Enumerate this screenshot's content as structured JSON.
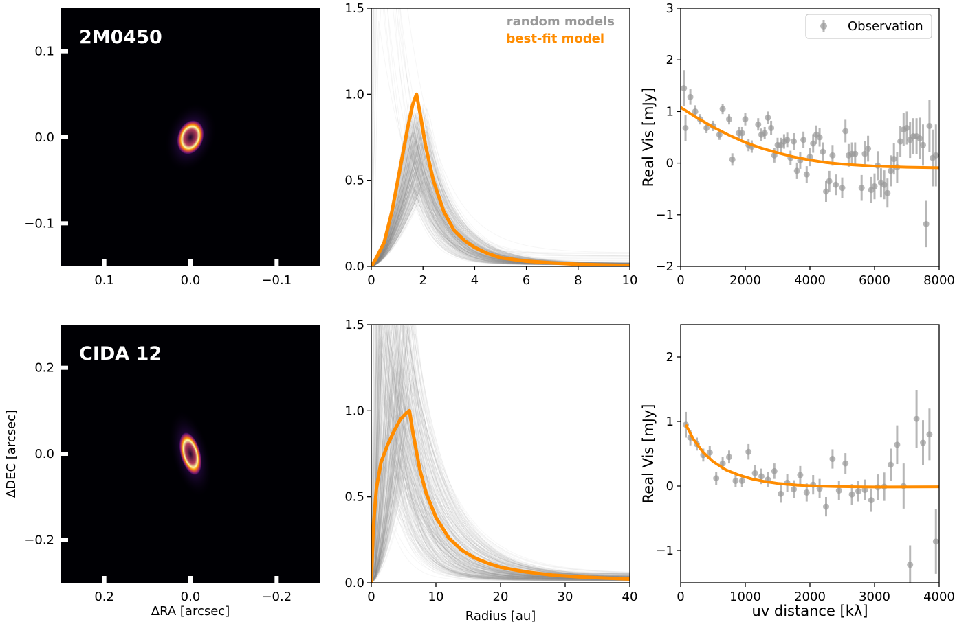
{
  "chart_data": [
    {
      "panel": "top-left",
      "type": "heatmap",
      "label": "2M0450",
      "xlabel": "",
      "ylabel": "",
      "xticks": [
        "0.1",
        "0.0",
        "−0.1"
      ],
      "yticks": [
        "0.1",
        "0.0",
        "−0.1"
      ],
      "xlim": [
        0.15,
        -0.15
      ],
      "ylim": [
        -0.15,
        0.15
      ],
      "colormap": "inferno",
      "ring": {
        "ra_center": 0.0,
        "dec_center": 0.0,
        "semi_major_arcsec": 0.014,
        "semi_minor_arcsec": 0.009,
        "position_angle_deg": -20
      }
    },
    {
      "panel": "top-middle",
      "type": "line",
      "xlabel": "",
      "ylabel": "",
      "xlim": [
        0,
        10
      ],
      "ylim": [
        0,
        1.5
      ],
      "xticks": [
        "0",
        "2",
        "4",
        "6",
        "8",
        "10"
      ],
      "yticks": [
        "0.0",
        "0.5",
        "1.0",
        "1.5"
      ],
      "legend": [
        {
          "text": "random models",
          "color": "#999999"
        },
        {
          "text": "best-fit model",
          "color": "#ff8c00"
        }
      ],
      "series": [
        {
          "name": "best-fit model",
          "x": [
            0,
            0.2,
            0.5,
            0.8,
            1.1,
            1.4,
            1.6,
            1.75,
            1.9,
            2.1,
            2.4,
            2.8,
            3.2,
            3.6,
            4.0,
            4.5,
            5.0,
            6.0,
            7.0,
            8.0,
            9.0,
            10.0
          ],
          "y": [
            0.0,
            0.05,
            0.14,
            0.32,
            0.56,
            0.8,
            0.94,
            1.0,
            0.88,
            0.7,
            0.5,
            0.32,
            0.21,
            0.15,
            0.11,
            0.075,
            0.05,
            0.03,
            0.02,
            0.012,
            0.008,
            0.005
          ]
        }
      ],
      "random_models_count": 300
    },
    {
      "panel": "top-right",
      "type": "scatter",
      "xlabel": "",
      "ylabel": "Real Vis [mJy]",
      "xlim": [
        0,
        8000
      ],
      "ylim": [
        -2,
        3
      ],
      "xticks": [
        "0",
        "2000",
        "4000",
        "6000",
        "8000"
      ],
      "yticks": [
        "−2",
        "−1",
        "0",
        "1",
        "2",
        "3"
      ],
      "legend": [
        "Observation"
      ],
      "observation": {
        "x": [
          100,
          150,
          300,
          450,
          600,
          800,
          1000,
          1200,
          1300,
          1500,
          1600,
          1800,
          1900,
          2000,
          2100,
          2200,
          2400,
          2500,
          2600,
          2700,
          2800,
          2900,
          3000,
          3100,
          3200,
          3300,
          3400,
          3500,
          3600,
          3700,
          3800,
          3900,
          4000,
          4100,
          4200,
          4300,
          4400,
          4500,
          4600,
          4700,
          4800,
          5000,
          5100,
          5200,
          5300,
          5400,
          5600,
          5700,
          5800,
          5900,
          6000,
          6100,
          6200,
          6300,
          6400,
          6500,
          6600,
          6700,
          6800,
          6900,
          7000,
          7100,
          7200,
          7300,
          7400,
          7500,
          7600,
          7700,
          7800,
          7900
        ],
        "y": [
          1.45,
          0.68,
          1.28,
          1.0,
          0.85,
          0.68,
          0.72,
          0.55,
          1.05,
          0.85,
          0.07,
          0.58,
          0.58,
          0.85,
          0.35,
          0.32,
          0.75,
          0.55,
          0.58,
          0.88,
          0.68,
          0.15,
          0.35,
          0.35,
          0.42,
          0.45,
          0.1,
          0.42,
          -0.15,
          0.05,
          0.45,
          -0.22,
          0.12,
          0.38,
          0.55,
          0.5,
          0.22,
          -0.55,
          -0.35,
          0.15,
          -0.42,
          -0.48,
          0.62,
          0.15,
          0.18,
          0.18,
          -0.48,
          0.18,
          0.28,
          -0.52,
          -0.45,
          -0.05,
          -0.38,
          -0.42,
          -0.58,
          -0.15,
          0.08,
          -0.08,
          0.42,
          0.65,
          0.68,
          0.45,
          0.52,
          0.52,
          0.48,
          0.35,
          -1.18,
          0.72,
          0.1,
          0.15
        ],
        "err": [
          0.35,
          0.25,
          0.15,
          0.12,
          0.1,
          0.1,
          0.1,
          0.1,
          0.1,
          0.1,
          0.12,
          0.12,
          0.12,
          0.12,
          0.12,
          0.12,
          0.12,
          0.12,
          0.12,
          0.12,
          0.14,
          0.14,
          0.14,
          0.14,
          0.14,
          0.14,
          0.14,
          0.16,
          0.16,
          0.16,
          0.16,
          0.16,
          0.18,
          0.18,
          0.18,
          0.18,
          0.18,
          0.2,
          0.2,
          0.2,
          0.2,
          0.2,
          0.22,
          0.22,
          0.22,
          0.22,
          0.25,
          0.25,
          0.25,
          0.25,
          0.25,
          0.28,
          0.28,
          0.28,
          0.28,
          0.3,
          0.3,
          0.3,
          0.3,
          0.32,
          0.32,
          0.35,
          0.35,
          0.35,
          0.4,
          0.4,
          0.45,
          0.5,
          0.55,
          0.6
        ]
      },
      "series": [
        {
          "name": "best-fit model",
          "x": [
            0,
            500,
            1000,
            1500,
            2000,
            2500,
            3000,
            3500,
            4000,
            4500,
            5000,
            5500,
            6000,
            6500,
            7000,
            7500,
            8000
          ],
          "y": [
            1.08,
            0.88,
            0.7,
            0.54,
            0.4,
            0.29,
            0.2,
            0.12,
            0.06,
            0.01,
            -0.02,
            -0.04,
            -0.06,
            -0.07,
            -0.08,
            -0.085,
            -0.09
          ]
        }
      ]
    },
    {
      "panel": "bottom-left",
      "type": "heatmap",
      "label": "CIDA 12",
      "xlabel": "ΔRA [arcsec]",
      "ylabel": "ΔDEC [arcsec]",
      "xticks": [
        "0.2",
        "0.0",
        "−0.2"
      ],
      "yticks": [
        "0.2",
        "0.0",
        "−0.2"
      ],
      "xlim": [
        0.3,
        -0.3
      ],
      "ylim": [
        -0.3,
        0.3
      ],
      "colormap": "inferno",
      "ring": {
        "ra_center": 0.0,
        "dec_center": 0.0,
        "semi_major_arcsec": 0.035,
        "semi_minor_arcsec": 0.014,
        "position_angle_deg": 15
      }
    },
    {
      "panel": "bottom-middle",
      "type": "line",
      "xlabel": "Radius [au]",
      "ylabel": "",
      "xlim": [
        0,
        40
      ],
      "ylim": [
        0,
        1.5
      ],
      "xticks": [
        "0",
        "10",
        "20",
        "30",
        "40"
      ],
      "yticks": [
        "0.0",
        "0.5",
        "1.0",
        "1.5"
      ],
      "series": [
        {
          "name": "best-fit model",
          "x": [
            0,
            0.3,
            0.8,
            1.5,
            2.5,
            3.5,
            4.5,
            5.5,
            5.9,
            6.5,
            7.5,
            8.5,
            10,
            12,
            14,
            16,
            18,
            20,
            24,
            28,
            32,
            36,
            40
          ],
          "y": [
            0.0,
            0.32,
            0.55,
            0.7,
            0.8,
            0.88,
            0.95,
            0.99,
            1.0,
            0.86,
            0.66,
            0.52,
            0.38,
            0.26,
            0.19,
            0.145,
            0.115,
            0.09,
            0.063,
            0.045,
            0.035,
            0.028,
            0.022
          ]
        }
      ],
      "random_models_count": 300
    },
    {
      "panel": "bottom-right",
      "type": "scatter",
      "xlabel": "uv distance [kλ]",
      "ylabel": "Real Vis [mJy]",
      "xlim": [
        0,
        4000
      ],
      "ylim": [
        -1.5,
        2.5
      ],
      "xticks": [
        "0",
        "1000",
        "2000",
        "3000",
        "4000"
      ],
      "yticks": [
        "−1",
        "0",
        "1",
        "2"
      ],
      "observation": {
        "x": [
          80,
          150,
          250,
          350,
          450,
          550,
          650,
          750,
          850,
          950,
          1050,
          1150,
          1250,
          1350,
          1450,
          1550,
          1650,
          1750,
          1850,
          1950,
          2050,
          2150,
          2250,
          2350,
          2450,
          2550,
          2650,
          2750,
          2850,
          2950,
          3050,
          3150,
          3250,
          3350,
          3450,
          3550,
          3650,
          3750,
          3850,
          3950
        ],
        "y": [
          0.95,
          0.75,
          0.65,
          0.48,
          0.52,
          0.12,
          0.35,
          0.45,
          0.08,
          0.08,
          0.53,
          0.2,
          0.15,
          0.1,
          0.23,
          -0.12,
          0.05,
          -0.05,
          0.17,
          -0.1,
          0.02,
          -0.04,
          -0.32,
          0.42,
          -0.07,
          0.35,
          -0.13,
          -0.08,
          -0.06,
          -0.22,
          -0.02,
          -0.01,
          0.33,
          0.64,
          0.0,
          -1.22,
          1.04,
          0.67,
          0.8,
          -0.86
        ],
        "err": [
          0.2,
          0.12,
          0.1,
          0.1,
          0.1,
          0.1,
          0.1,
          0.1,
          0.1,
          0.1,
          0.12,
          0.12,
          0.12,
          0.12,
          0.12,
          0.14,
          0.14,
          0.14,
          0.14,
          0.14,
          0.15,
          0.15,
          0.15,
          0.15,
          0.15,
          0.16,
          0.16,
          0.16,
          0.16,
          0.18,
          0.2,
          0.22,
          0.25,
          0.3,
          0.35,
          0.3,
          0.45,
          0.35,
          0.4,
          0.5
        ]
      },
      "series": [
        {
          "name": "best-fit model",
          "x": [
            80,
            200,
            350,
            500,
            700,
            900,
            1100,
            1300,
            1500,
            1800,
            2100,
            2400,
            2700,
            3000,
            3300,
            3600,
            4000
          ],
          "y": [
            0.95,
            0.72,
            0.52,
            0.38,
            0.25,
            0.17,
            0.11,
            0.07,
            0.04,
            0.015,
            0.0,
            -0.008,
            -0.012,
            -0.015,
            -0.015,
            -0.014,
            -0.012
          ]
        }
      ]
    }
  ]
}
